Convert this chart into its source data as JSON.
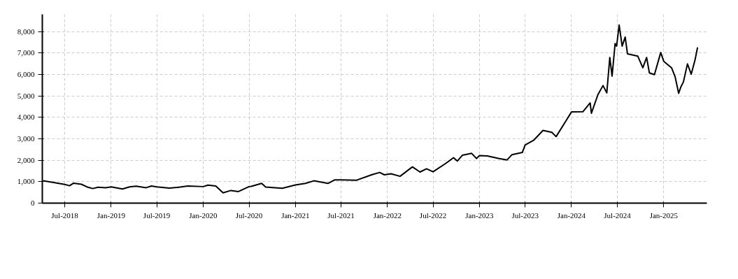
{
  "chart_data": {
    "type": "line",
    "grid": true,
    "marker": "none",
    "line_style": "solid",
    "xlim": [
      "2018-04-03",
      "2025-06-21"
    ],
    "ylim": [
      0,
      8800
    ],
    "yticks": [
      {
        "value": 0,
        "label": "0"
      },
      {
        "value": 1000,
        "label": "1,000"
      },
      {
        "value": 2000,
        "label": "2,000"
      },
      {
        "value": 3000,
        "label": "3,000"
      },
      {
        "value": 4000,
        "label": "4,000"
      },
      {
        "value": 5000,
        "label": "5,000"
      },
      {
        "value": 6000,
        "label": "6,000"
      },
      {
        "value": 7000,
        "label": "7,000"
      },
      {
        "value": 8000,
        "label": "8,000"
      }
    ],
    "xticks": [
      {
        "value": "2018-07-01",
        "label": "Jul-2018"
      },
      {
        "value": "2019-01-01",
        "label": "Jan-2019"
      },
      {
        "value": "2019-07-01",
        "label": "Jul-2019"
      },
      {
        "value": "2020-01-01",
        "label": "Jan-2020"
      },
      {
        "value": "2020-07-01",
        "label": "Jul-2020"
      },
      {
        "value": "2021-01-01",
        "label": "Jan-2021"
      },
      {
        "value": "2021-07-01",
        "label": "Jul-2021"
      },
      {
        "value": "2022-01-01",
        "label": "Jan-2022"
      },
      {
        "value": "2022-07-01",
        "label": "Jul-2022"
      },
      {
        "value": "2023-01-01",
        "label": "Jan-2023"
      },
      {
        "value": "2023-07-01",
        "label": "Jul-2023"
      },
      {
        "value": "2024-01-01",
        "label": "Jan-2024"
      },
      {
        "value": "2024-07-01",
        "label": "Jul-2024"
      },
      {
        "value": "2025-01-01",
        "label": "Jan-2025"
      }
    ],
    "x": [
      "2018-04-06",
      "2018-05-18",
      "2018-07-01",
      "2018-07-20",
      "2018-08-05",
      "2018-09-05",
      "2018-10-01",
      "2018-10-20",
      "2018-11-10",
      "2018-12-10",
      "2019-01-01",
      "2019-02-15",
      "2019-03-15",
      "2019-04-10",
      "2019-05-20",
      "2019-06-10",
      "2019-07-01",
      "2019-08-20",
      "2019-09-20",
      "2019-11-01",
      "2020-01-01",
      "2020-01-20",
      "2020-02-20",
      "2020-03-20",
      "2020-04-20",
      "2020-05-20",
      "2020-07-01",
      "2020-07-10",
      "2020-08-20",
      "2020-09-05",
      "2020-11-10",
      "2021-01-01",
      "2021-02-10",
      "2021-03-15",
      "2021-05-10",
      "2021-06-05",
      "2021-07-01",
      "2021-09-01",
      "2021-11-01",
      "2021-12-01",
      "2021-12-20",
      "2022-01-15",
      "2022-02-20",
      "2022-04-10",
      "2022-05-10",
      "2022-06-05",
      "2022-07-01",
      "2022-08-20",
      "2022-09-20",
      "2022-10-05",
      "2022-10-25",
      "2022-12-01",
      "2022-12-20",
      "2023-01-01",
      "2023-02-01",
      "2023-03-20",
      "2023-04-20",
      "2023-05-10",
      "2023-06-20",
      "2023-07-01",
      "2023-08-05",
      "2023-09-10",
      "2023-10-15",
      "2023-11-01",
      "2023-12-15",
      "2024-01-01",
      "2024-02-15",
      "2024-03-15",
      "2024-03-20",
      "2024-04-15",
      "2024-05-05",
      "2024-05-20",
      "2024-06-01",
      "2024-06-10",
      "2024-06-22",
      "2024-06-28",
      "2024-07-08",
      "2024-07-20",
      "2024-08-01",
      "2024-08-10",
      "2024-09-20",
      "2024-10-10",
      "2024-10-25",
      "2024-11-05",
      "2024-11-25",
      "2024-12-20",
      "2025-01-01",
      "2025-02-01",
      "2025-02-15",
      "2025-03-01",
      "2025-03-10",
      "2025-03-20",
      "2025-04-05",
      "2025-04-20",
      "2025-05-05",
      "2025-05-15"
    ],
    "series": [
      {
        "color": "#000000",
        "values": [
          1040,
          960,
          870,
          810,
          930,
          880,
          740,
          680,
          740,
          720,
          760,
          660,
          760,
          790,
          720,
          800,
          760,
          700,
          730,
          800,
          770,
          840,
          800,
          480,
          590,
          540,
          770,
          780,
          920,
          750,
          690,
          845,
          920,
          1040,
          920,
          1080,
          1080,
          1070,
          1330,
          1430,
          1320,
          1370,
          1250,
          1690,
          1450,
          1600,
          1460,
          1850,
          2120,
          1960,
          2230,
          2320,
          2080,
          2220,
          2200,
          2080,
          2010,
          2260,
          2360,
          2710,
          2940,
          3390,
          3300,
          3100,
          3930,
          4250,
          4260,
          4670,
          4190,
          5060,
          5480,
          5140,
          6790,
          5920,
          7440,
          7320,
          8300,
          7320,
          7740,
          6960,
          6850,
          6310,
          6790,
          6070,
          5990,
          7020,
          6610,
          6310,
          5890,
          5120,
          5420,
          5650,
          6490,
          6010,
          6670,
          7260
        ]
      }
    ]
  }
}
